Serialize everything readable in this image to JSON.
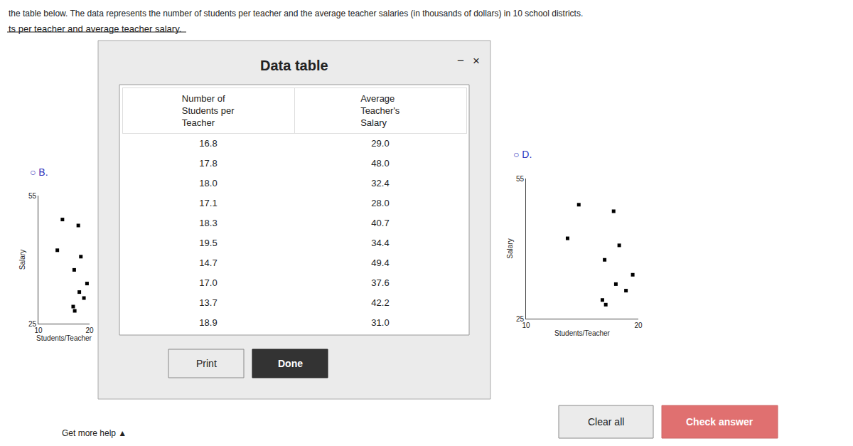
{
  "title": "the table below. The data represents the number of students per teacher and the average teacher salaries (in thousands of dollars) in 10 school districts.",
  "subtitle": "ts per teacher and average teacher salary.",
  "annotations": [
    "Clear all",
    "Check answer",
    "Get more help ▲"
  ],
  "chart_data": [
    {
      "type": "table",
      "title": "Data table",
      "series": [
        {
          "name": [
            "Number of",
            "Students per",
            "Teacher"
          ],
          "values": [
            16.8,
            17.8,
            18.0,
            17.1,
            18.3,
            19.5,
            14.7,
            17.0,
            13.7,
            18.9
          ],
          "value_labels": [
            "16.8",
            "17.8",
            "18.0",
            "17.1",
            "18.3",
            "19.5",
            "14.7",
            "17.0",
            "13.7",
            "18.9"
          ]
        },
        {
          "name": [
            "Average",
            "Teacher's",
            "Salary"
          ],
          "values": [
            29.0,
            48.0,
            32.4,
            28.0,
            40.7,
            34.4,
            49.4,
            37.6,
            42.2,
            31.0
          ],
          "value_labels": [
            "29.0",
            "48.0",
            "32.4",
            "28.0",
            "40.7",
            "34.4",
            "49.4",
            "37.6",
            "42.2",
            "31.0"
          ]
        }
      ],
      "annotations": [
        "−",
        "×",
        "Print",
        "Done"
      ]
    },
    {
      "type": "scatter",
      "title": "○ B.",
      "x": [
        16.8,
        17.8,
        18.0,
        17.1,
        18.3,
        19.5,
        14.7,
        17.0,
        13.7,
        18.9
      ],
      "values": [
        29.0,
        48.0,
        32.4,
        28.0,
        40.7,
        34.4,
        49.4,
        37.6,
        42.2,
        31.0
      ],
      "xlabel": "Students/Teacher",
      "ylabel": "Salary",
      "xlim": [
        10,
        20
      ],
      "ylim": [
        25,
        55
      ],
      "xticks": [
        10,
        20
      ],
      "yticks": [
        25,
        55
      ],
      "grid": true,
      "color": "black",
      "marker": "square"
    },
    {
      "type": "scatter",
      "title": "○ D.",
      "x": [
        16.8,
        17.8,
        18.0,
        17.1,
        18.3,
        19.5,
        14.7,
        17.0,
        13.7,
        18.9
      ],
      "values": [
        29.0,
        48.0,
        32.4,
        28.0,
        40.7,
        34.4,
        49.4,
        37.6,
        42.2,
        31.0
      ],
      "xlabel": "Students/Teacher",
      "ylabel": "Salary",
      "xlim": [
        10,
        20
      ],
      "ylim": [
        25,
        55
      ],
      "xticks": [
        10,
        20
      ],
      "yticks": [
        25,
        55
      ],
      "grid": true,
      "color": "black",
      "marker": "square"
    }
  ]
}
